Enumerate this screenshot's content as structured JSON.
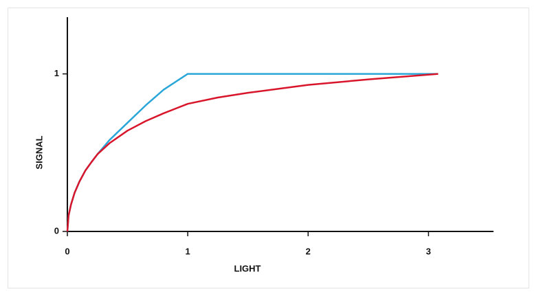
{
  "chart_data": {
    "type": "line",
    "xlabel": "LIGHT",
    "ylabel": "SIGNAL",
    "x": [
      0,
      0.01,
      0.03,
      0.06,
      0.1,
      0.15,
      0.2,
      0.25,
      0.35,
      0.5,
      0.65,
      0.8,
      1,
      1.25,
      1.5,
      2,
      2.5,
      3.08
    ],
    "series": [
      {
        "color": "#2aa6d8",
        "values": [
          0,
          0.1,
          0.17,
          0.245,
          0.316,
          0.387,
          0.44,
          0.49,
          0.58,
          0.69,
          0.8,
          0.9,
          1,
          1,
          1,
          1,
          1,
          1
        ]
      },
      {
        "color": "#d8152a",
        "values": [
          0,
          0.1,
          0.17,
          0.245,
          0.316,
          0.387,
          0.44,
          0.49,
          0.56,
          0.64,
          0.7,
          0.75,
          0.81,
          0.85,
          0.88,
          0.93,
          0.965,
          1.0
        ]
      }
    ],
    "xlim": [
      0,
      3.54
    ],
    "ylim": [
      0,
      1.36
    ],
    "xticks": [
      0,
      1,
      2,
      3
    ],
    "yticks": [
      0,
      1
    ]
  }
}
